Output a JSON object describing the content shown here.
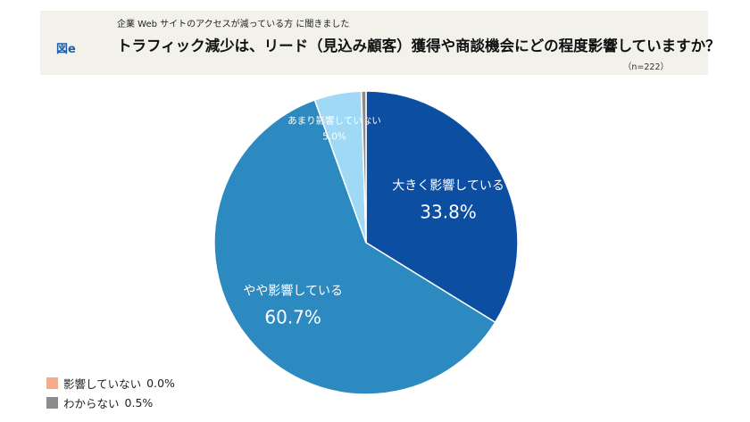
{
  "header": {
    "fig_label": "図e",
    "subtitle": "企業 Web サイトのアクセスが減っている方 に聞きました",
    "title": "トラフィック減少は、リード（見込み顧客）獲得や商談機会にどの程度影響していますか？",
    "sample": "（n=222）"
  },
  "chart_data": {
    "type": "pie",
    "slices": [
      {
        "label": "大きく影響している",
        "value": 33.8,
        "display": "33.8%",
        "color": "#0b4ea2"
      },
      {
        "label": "やや影響している",
        "value": 60.7,
        "display": "60.7%",
        "color": "#2d8ac0"
      },
      {
        "label": "あまり影響していない",
        "value": 5.0,
        "display": "5.0%",
        "color": "#9fd9f6"
      },
      {
        "label": "影響していない",
        "value": 0.0,
        "display": "0.0%",
        "color": "#f4ad8a"
      },
      {
        "label": "わからない",
        "value": 0.5,
        "display": "0.5%",
        "color": "#8c8c8c"
      }
    ],
    "legend": [
      {
        "label": "影響していない",
        "display": "0.0%",
        "color": "#f4ad8a"
      },
      {
        "label": "わからない",
        "display": "0.5%",
        "color": "#8c8c8c"
      }
    ],
    "legend_position": "bottom-left"
  }
}
